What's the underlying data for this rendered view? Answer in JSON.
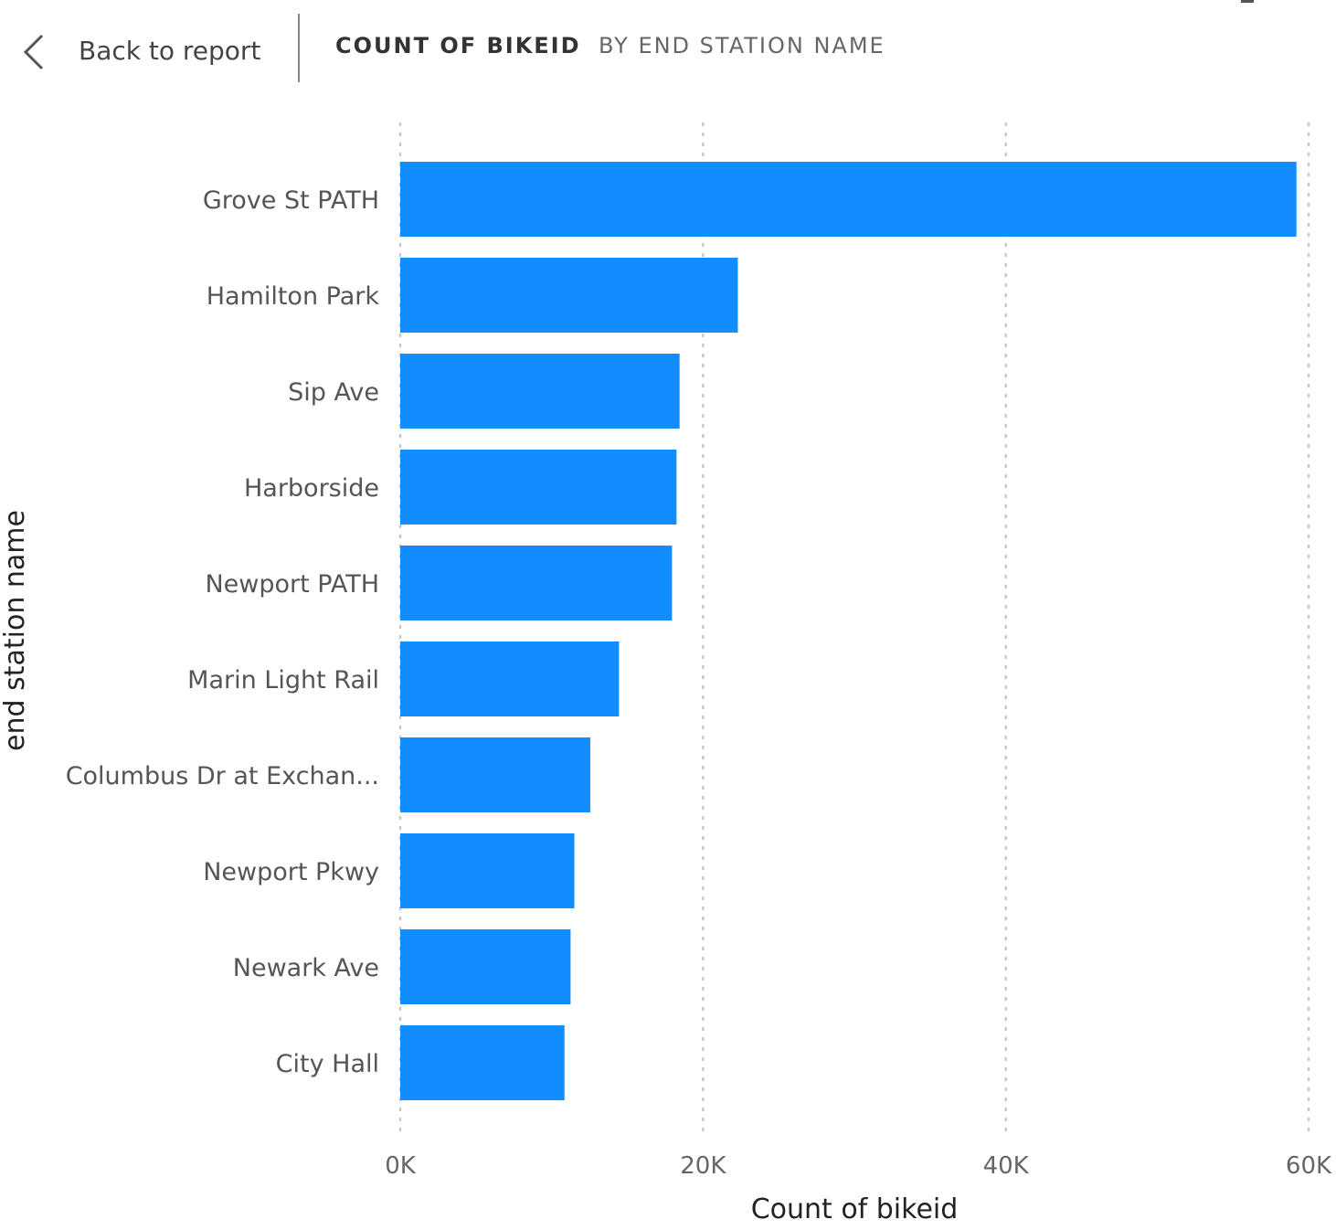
{
  "header": {
    "back_label": "Back to report",
    "title": "COUNT OF BIKEID",
    "subtitle": "BY END STATION NAME"
  },
  "icons": {
    "back": "chevron-left-icon"
  },
  "colors": {
    "bar": "#118DFF",
    "grid": "#C8C8C8"
  },
  "chart_data": {
    "type": "bar",
    "orientation": "horizontal",
    "categories": [
      "Grove St PATH",
      "Hamilton Park",
      "Sip Ave",
      "Harborside",
      "Newport PATH",
      "Marin Light Rail",
      "Columbus Dr at Exchan...",
      "Newport Pkwy",
      "Newark Ave",
      "City Hall"
    ],
    "values": [
      59200,
      22300,
      18450,
      18250,
      17950,
      14450,
      12550,
      11500,
      11250,
      10850
    ],
    "xlabel": "Count of bikeid",
    "ylabel": "end station name",
    "xlim": [
      0,
      60000
    ],
    "xticks": [
      0,
      20000,
      40000,
      60000
    ],
    "xtick_labels": [
      "0K",
      "20K",
      "40K",
      "60K"
    ],
    "grid": true
  }
}
